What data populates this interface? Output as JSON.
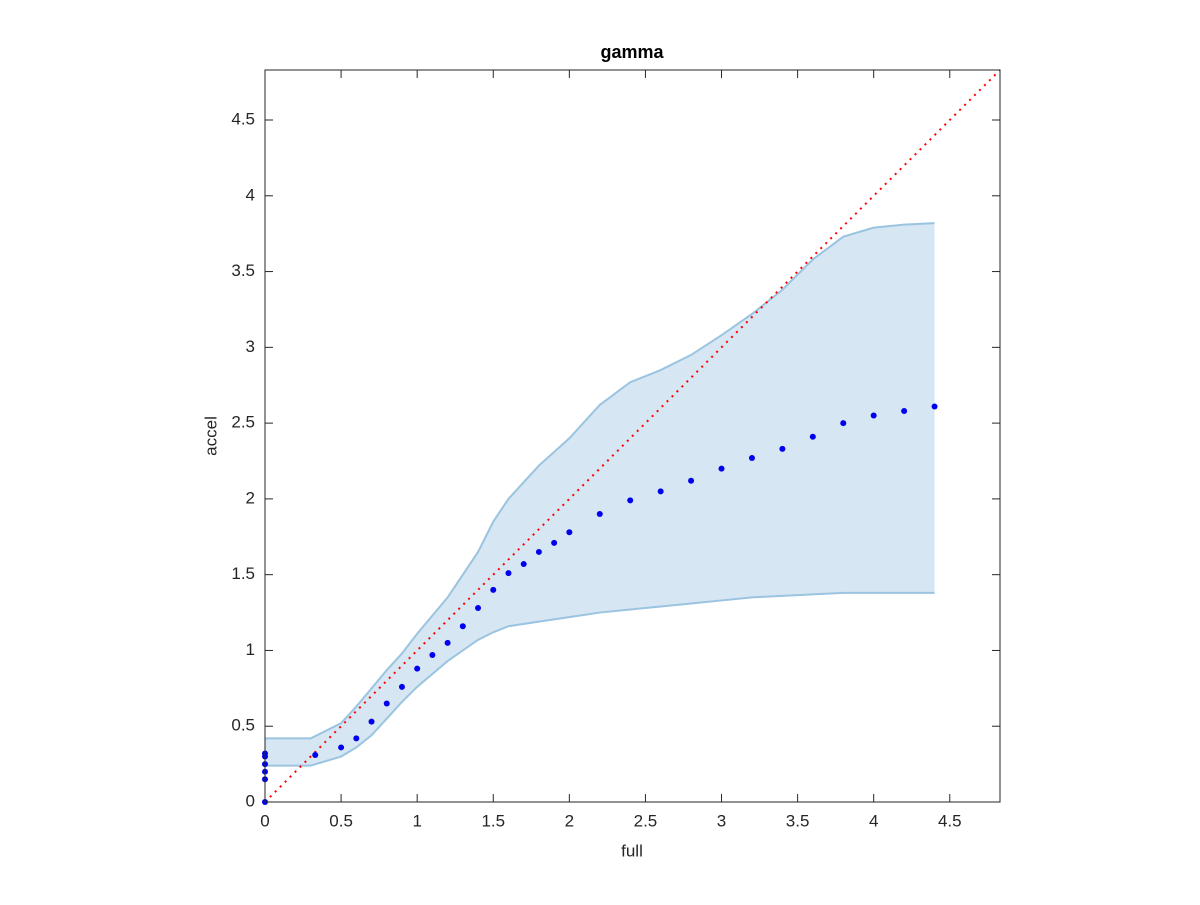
{
  "chart_data": {
    "type": "scatter",
    "title": "gamma",
    "x_label": "full",
    "y_label": "accel",
    "xlim": [
      0,
      4.83
    ],
    "ylim": [
      0,
      4.83
    ],
    "xticks": [
      0,
      0.5,
      1,
      1.5,
      2,
      2.5,
      3,
      3.5,
      4,
      4.5
    ],
    "yticks": [
      0,
      0.5,
      1,
      1.5,
      2,
      2.5,
      3,
      3.5,
      4,
      4.5
    ],
    "series": [
      {
        "color": "#0000ee",
        "x": [
          0,
          0,
          0,
          0,
          0,
          0,
          0.33,
          0.5,
          0.6,
          0.7,
          0.8,
          0.9,
          1.0,
          1.1,
          1.2,
          1.3,
          1.4,
          1.5,
          1.6,
          1.7,
          1.8,
          1.9,
          2.0,
          2.2,
          2.4,
          2.6,
          2.8,
          3.0,
          3.2,
          3.4,
          3.6,
          3.8,
          4.0,
          4.2,
          4.4
        ],
        "values": [
          0,
          0.15,
          0.2,
          0.25,
          0.3,
          0.32,
          0.31,
          0.36,
          0.42,
          0.53,
          0.65,
          0.76,
          0.88,
          0.97,
          1.05,
          1.16,
          1.28,
          1.4,
          1.51,
          1.57,
          1.65,
          1.71,
          1.78,
          1.9,
          1.99,
          2.05,
          2.12,
          2.2,
          2.27,
          2.33,
          2.41,
          2.5,
          2.55,
          2.58,
          2.61
        ]
      }
    ],
    "band": {
      "color": "#9ac4e0",
      "fill": "#d6e6f3",
      "x": [
        0,
        0.3,
        0.5,
        0.6,
        0.7,
        0.8,
        0.9,
        1.0,
        1.2,
        1.4,
        1.5,
        1.6,
        1.8,
        2.0,
        2.2,
        2.4,
        2.6,
        2.8,
        3.0,
        3.2,
        3.4,
        3.6,
        3.8,
        4.0,
        4.2,
        4.4
      ],
      "lower": [
        0.24,
        0.24,
        0.3,
        0.36,
        0.44,
        0.55,
        0.66,
        0.76,
        0.93,
        1.07,
        1.12,
        1.16,
        1.19,
        1.22,
        1.25,
        1.27,
        1.29,
        1.31,
        1.33,
        1.35,
        1.36,
        1.37,
        1.38,
        1.38,
        1.38,
        1.38
      ],
      "upper": [
        0.42,
        0.42,
        0.52,
        0.63,
        0.75,
        0.87,
        0.98,
        1.11,
        1.35,
        1.65,
        1.85,
        2.0,
        2.22,
        2.4,
        2.62,
        2.77,
        2.85,
        2.95,
        3.08,
        3.22,
        3.38,
        3.58,
        3.73,
        3.79,
        3.81,
        3.82
      ]
    },
    "reference_line": {
      "color": "#ff0000",
      "x": [
        0,
        4.83
      ],
      "values": [
        0,
        4.83
      ]
    }
  }
}
